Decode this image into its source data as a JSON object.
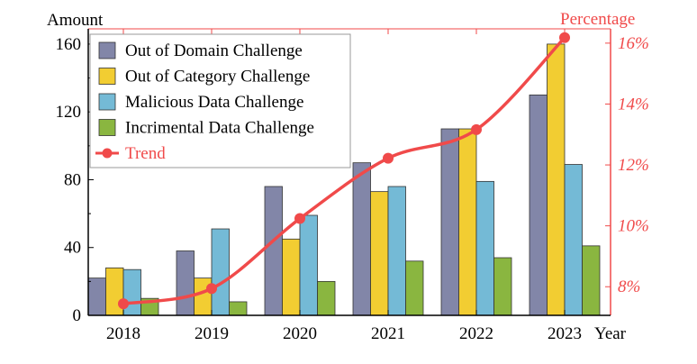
{
  "chart_data": {
    "type": "bar",
    "categories": [
      "2018",
      "2019",
      "2020",
      "2021",
      "2022",
      "2023"
    ],
    "xlabel": "Year",
    "ylabel": "Amount",
    "y2label": "Percentage",
    "ylim": [
      0,
      169
    ],
    "yticks": [
      0,
      40,
      80,
      120,
      160
    ],
    "y2lim": [
      7.06,
      16.47
    ],
    "y2ticks": [
      8,
      10,
      12,
      14,
      16
    ],
    "y2tick_labels": [
      "8%",
      "10%",
      "12%",
      "14%",
      "16%"
    ],
    "legend_position": "top-left",
    "grid": false,
    "series": [
      {
        "name": "Out of Domain Challenge",
        "color": "#8286a8",
        "values": [
          22,
          38,
          76,
          90,
          110,
          130
        ]
      },
      {
        "name": "Out of Category Challenge",
        "color": "#f2cd32",
        "values": [
          28,
          22,
          45,
          73,
          110,
          160
        ]
      },
      {
        "name": "Malicious Data Challenge",
        "color": "#74bad6",
        "values": [
          27,
          51,
          59,
          76,
          79,
          89
        ]
      },
      {
        "name": "Incrimental Data Challenge",
        "color": "#8ab640",
        "values": [
          10,
          8,
          20,
          32,
          34,
          41
        ]
      }
    ],
    "trend": {
      "name": "Trend",
      "color": "#f04a4a",
      "axis": "right",
      "values": [
        7.44,
        7.94,
        10.24,
        12.22,
        13.16,
        16.18
      ]
    }
  }
}
